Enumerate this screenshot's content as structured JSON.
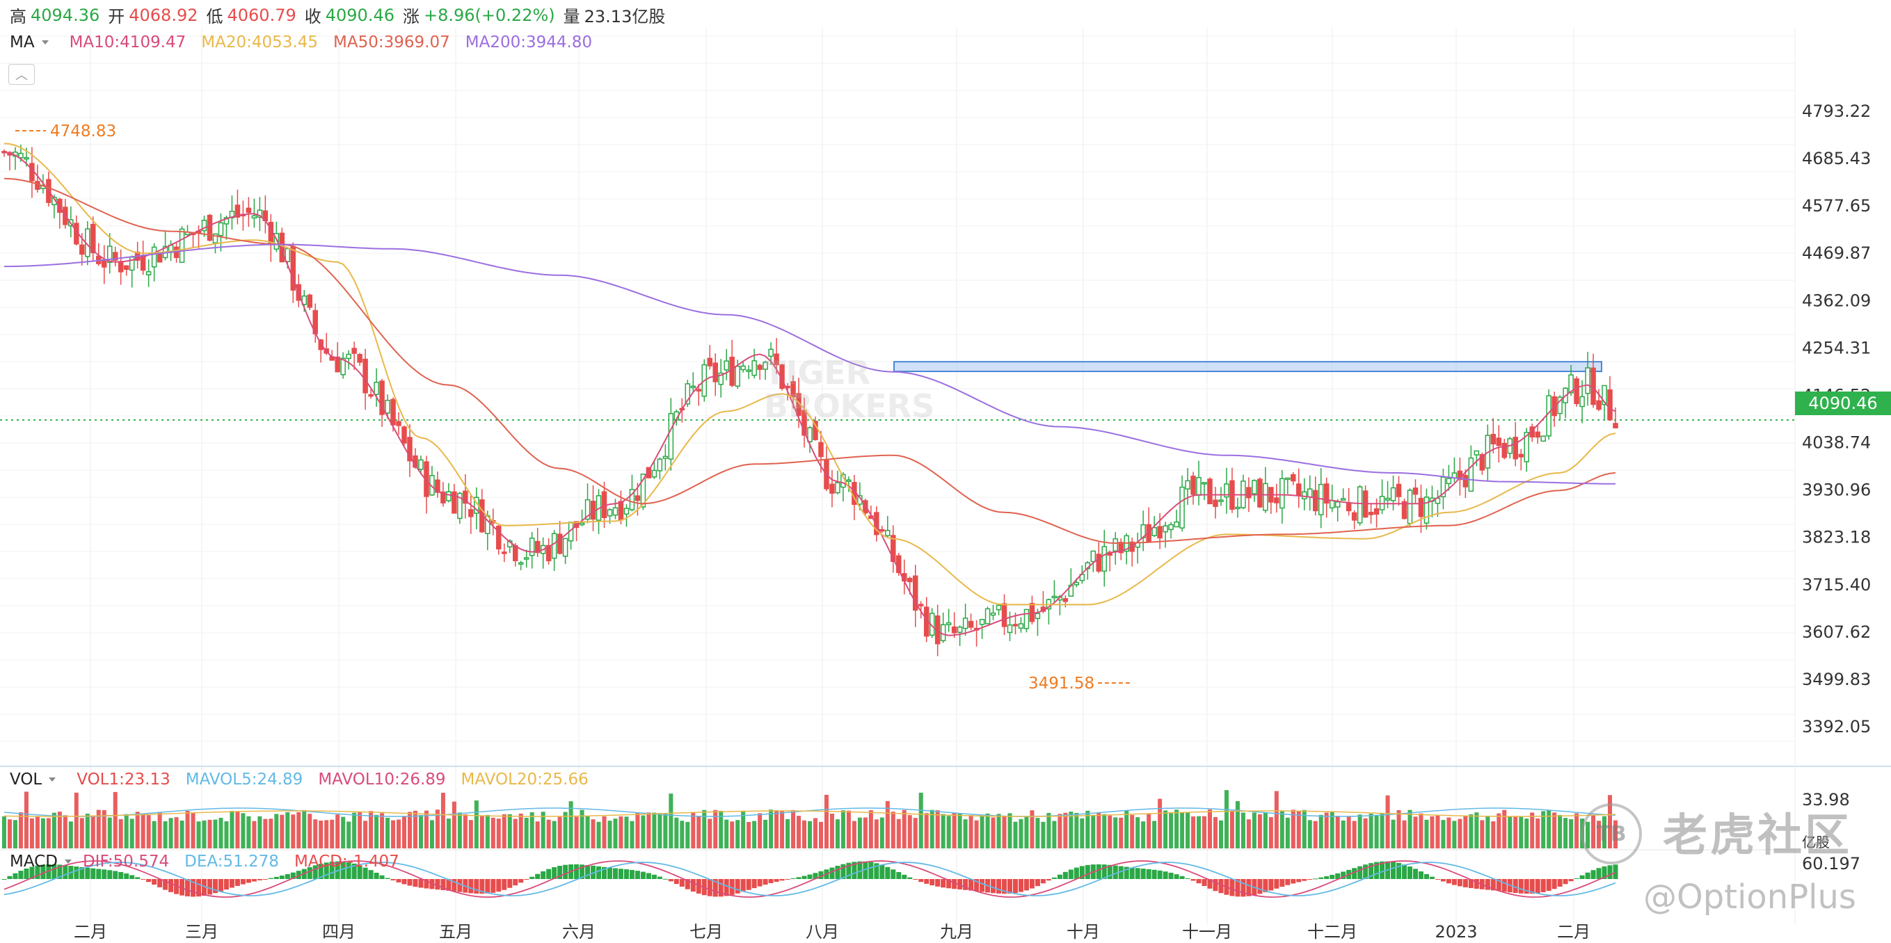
{
  "header": {
    "high_label": "高",
    "high": "4094.36",
    "open_label": "开",
    "open": "4068.92",
    "low_label": "低",
    "low": "4060.79",
    "close_label": "收",
    "close": "4090.46",
    "change_label": "涨",
    "change": "+8.96(+0.22%)",
    "volume_label": "量",
    "volume": "23.13亿股"
  },
  "indicators": {
    "ma": {
      "name": "MA",
      "ma10": "MA10:4109.47",
      "ma20": "MA20:4053.45",
      "ma50": "MA50:3969.07",
      "ma200": "MA200:3944.80"
    },
    "vol": {
      "name": "VOL",
      "vol1": "VOL1:23.13",
      "mavol5": "MAVOL5:24.89",
      "mavol10": "MAVOL10:26.89",
      "mavol20": "MAVOL20:25.66"
    },
    "macd": {
      "name": "MACD",
      "dif": "DIF:50.574",
      "dea": "DEA:51.278",
      "macd": "MACD:-1.407"
    }
  },
  "current_price_tag": "4090.46",
  "watermark": {
    "logo": "TB",
    "brand": "老虎社区",
    "handle": "@OptionPlus",
    "center_top": "TIGER",
    "center_bottom": "BROKERS"
  },
  "colors": {
    "up": "#e74c4c",
    "down": "#2aa845",
    "ma10": "#d94b7a",
    "ma20": "#e8b84a",
    "ma50": "#e0624f",
    "ma200": "#9b6ee0",
    "zone": "#a9c8f0",
    "current_line": "#35b04f",
    "annotation": "#ef7c22"
  },
  "chart_data": {
    "type": "candlestick",
    "y_axis_ticks": [
      "4793.22",
      "4685.43",
      "4577.65",
      "4469.87",
      "4362.09",
      "4254.31",
      "4146.52",
      "4038.74",
      "3930.96",
      "3823.18",
      "3715.40",
      "3607.62",
      "3499.83",
      "3392.05"
    ],
    "ylim": [
      3392.05,
      4793.22
    ],
    "x_tick_labels": [
      "二月",
      "三月",
      "四月",
      "五月",
      "六月",
      "七月",
      "八月",
      "九月",
      "十月",
      "十一月",
      "十二月",
      "2023",
      "二月"
    ],
    "annotations": [
      {
        "text": "4748.83",
        "value": 4748.83,
        "kind": "high"
      },
      {
        "text": "3491.58",
        "value": 3491.58,
        "kind": "low"
      }
    ],
    "resistance_zone": [
      4201,
      4223
    ],
    "current_price": 4090.46,
    "ma_series_approx": {
      "MA10": [
        [
          0,
          4700
        ],
        [
          20,
          4450
        ],
        [
          45,
          4560
        ],
        [
          60,
          4230
        ],
        [
          80,
          3920
        ],
        [
          95,
          3790
        ],
        [
          110,
          3900
        ],
        [
          128,
          4190
        ],
        [
          136,
          4240
        ],
        [
          150,
          3950
        ],
        [
          170,
          3600
        ],
        [
          185,
          3650
        ],
        [
          200,
          3790
        ],
        [
          215,
          3920
        ],
        [
          230,
          3920
        ],
        [
          245,
          3900
        ],
        [
          255,
          3900
        ],
        [
          270,
          4030
        ],
        [
          285,
          4170
        ],
        [
          290,
          4110
        ]
      ],
      "MA20": [
        [
          0,
          4720
        ],
        [
          25,
          4470
        ],
        [
          45,
          4500
        ],
        [
          60,
          4450
        ],
        [
          75,
          4050
        ],
        [
          90,
          3850
        ],
        [
          110,
          3860
        ],
        [
          130,
          4110
        ],
        [
          140,
          4150
        ],
        [
          160,
          3820
        ],
        [
          180,
          3670
        ],
        [
          195,
          3670
        ],
        [
          220,
          3830
        ],
        [
          245,
          3820
        ],
        [
          260,
          3880
        ],
        [
          280,
          3970
        ],
        [
          290,
          4060
        ]
      ],
      "MA50": [
        [
          0,
          4640
        ],
        [
          30,
          4520
        ],
        [
          50,
          4490
        ],
        [
          80,
          4170
        ],
        [
          100,
          3980
        ],
        [
          115,
          3900
        ],
        [
          135,
          3990
        ],
        [
          160,
          4010
        ],
        [
          180,
          3880
        ],
        [
          200,
          3810
        ],
        [
          230,
          3830
        ],
        [
          260,
          3850
        ],
        [
          280,
          3930
        ],
        [
          290,
          3970
        ]
      ],
      "MA200": [
        [
          0,
          4440
        ],
        [
          50,
          4490
        ],
        [
          70,
          4480
        ],
        [
          100,
          4420
        ],
        [
          130,
          4330
        ],
        [
          160,
          4200
        ],
        [
          190,
          4075
        ],
        [
          220,
          4010
        ],
        [
          250,
          3970
        ],
        [
          270,
          3950
        ],
        [
          290,
          3945
        ]
      ]
    },
    "vol_axis_ticks": [
      "33.98",
      "亿股"
    ],
    "macd_axis_ticks": [
      "60.197"
    ]
  }
}
